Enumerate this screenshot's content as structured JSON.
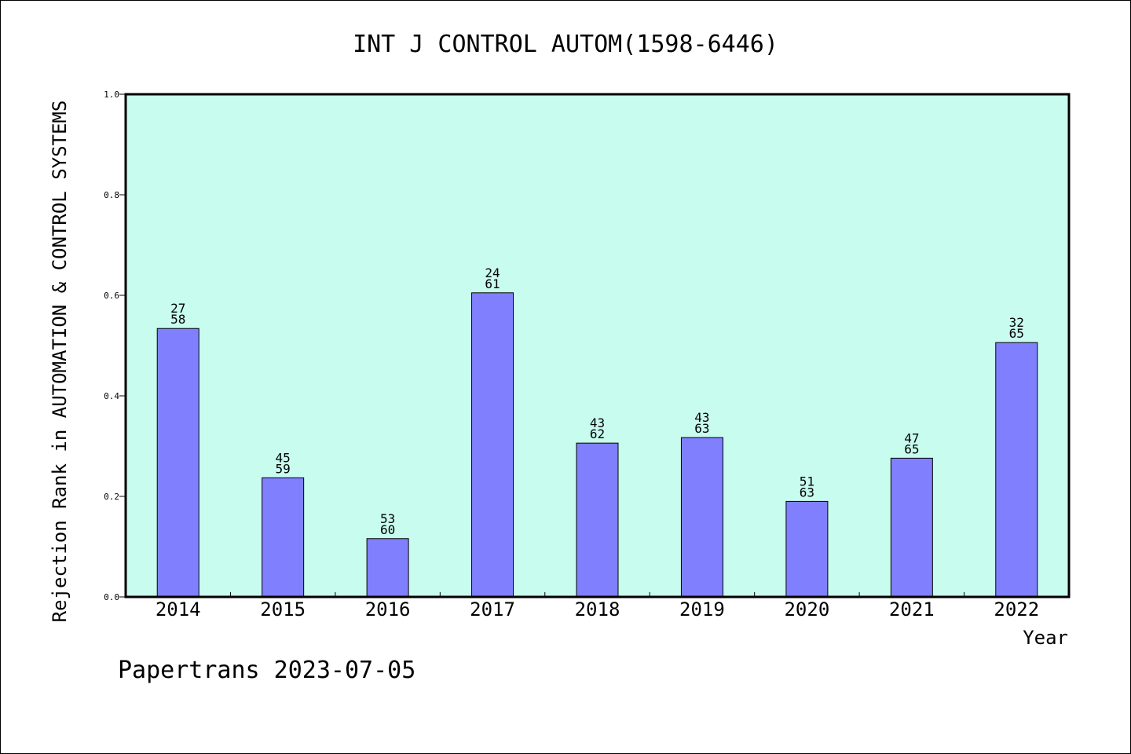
{
  "chart_data": {
    "type": "bar",
    "title": "INT J CONTROL AUTOM(1598-6446)",
    "ylabel": "Rejection Rank in AUTOMATION & CONTROL SYSTEMS",
    "xlabel": "Year",
    "categories": [
      "2014",
      "2015",
      "2016",
      "2017",
      "2018",
      "2019",
      "2020",
      "2021",
      "2022"
    ],
    "values": [
      0.534,
      0.237,
      0.116,
      0.605,
      0.306,
      0.317,
      0.19,
      0.276,
      0.506
    ],
    "label_top": [
      "27",
      "45",
      "53",
      "24",
      "43",
      "43",
      "51",
      "47",
      "32"
    ],
    "label_bottom": [
      "58",
      "59",
      "60",
      "61",
      "62",
      "63",
      "63",
      "65",
      "65"
    ],
    "ylim": [
      0,
      1.0
    ],
    "yticks": [
      "0.0",
      "0.2",
      "0.4",
      "0.6",
      "0.8",
      "1.0"
    ],
    "ytick_values": [
      0,
      0.2,
      0.4,
      0.6,
      0.8,
      1.0
    ],
    "grid": false,
    "colors": {
      "plot_bg": "#c8fcee",
      "bar": "#8080ff",
      "bar_edge": "#000000"
    }
  },
  "footer": {
    "text": "Papertrans 2023-07-05"
  }
}
